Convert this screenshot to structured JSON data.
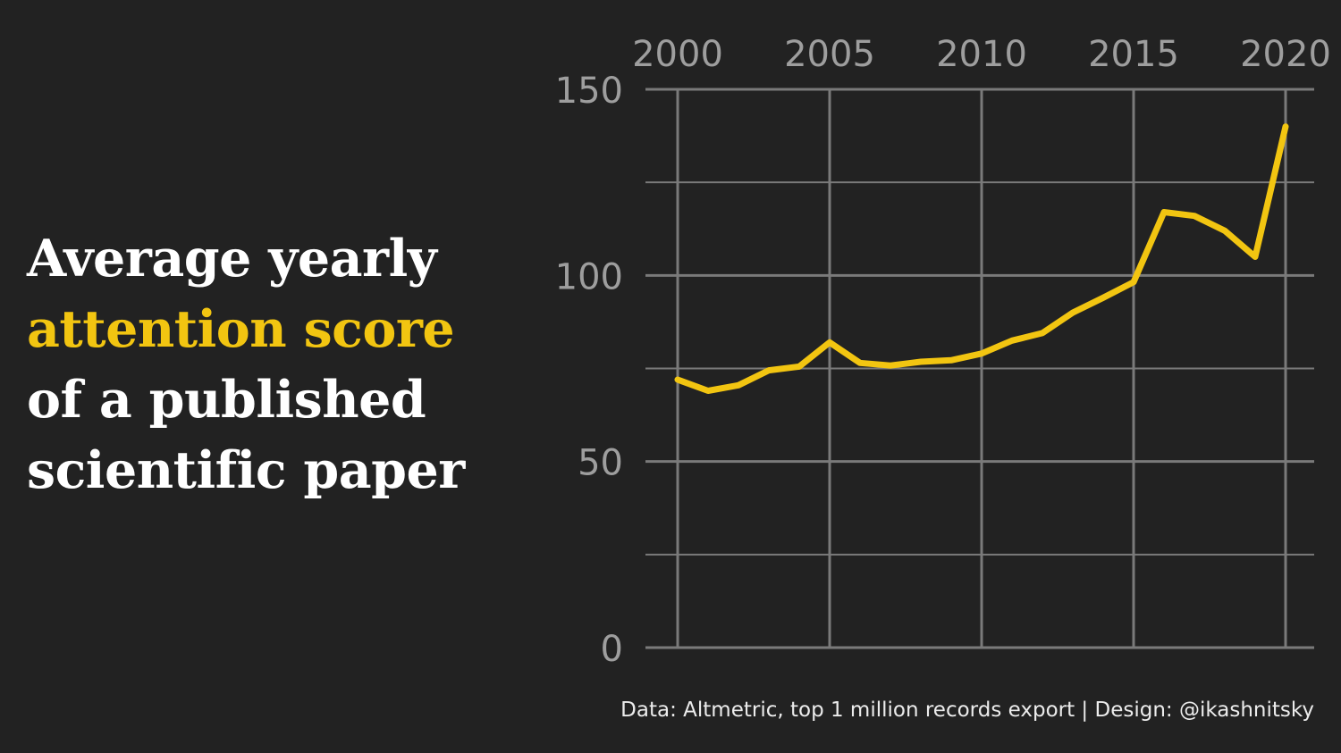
{
  "title": {
    "line1": "Average yearly",
    "line2": "attention score",
    "line3": "of a published",
    "line4": "scientific paper"
  },
  "caption": "Data: Altmetric, top 1 million records export | Design: @ikashnitsky",
  "colors": {
    "background": "#222222",
    "accent": "#f2c511",
    "grid": "#7a7a7a",
    "tick_text": "#9e9e9e",
    "title_text": "#ffffff"
  },
  "chart_data": {
    "type": "line",
    "x_tick_position": "top",
    "x_ticks": [
      2000,
      2005,
      2010,
      2015,
      2020
    ],
    "y_ticks": [
      0,
      50,
      100,
      150
    ],
    "xlim": [
      2000,
      2020
    ],
    "ylim": [
      0,
      150
    ],
    "grid": true,
    "series": [
      {
        "x": [
          2000,
          2001,
          2002,
          2003,
          2004,
          2005,
          2006,
          2007,
          2008,
          2009,
          2010,
          2011,
          2012,
          2013,
          2014,
          2015,
          2016,
          2017,
          2018,
          2019,
          2020
        ],
        "values": [
          72,
          69,
          70.5,
          74.5,
          75.5,
          82,
          76.5,
          75.8,
          76.8,
          77.2,
          79,
          82.5,
          84.5,
          90,
          94,
          98.2,
          117,
          116,
          112,
          105,
          140
        ]
      }
    ]
  }
}
